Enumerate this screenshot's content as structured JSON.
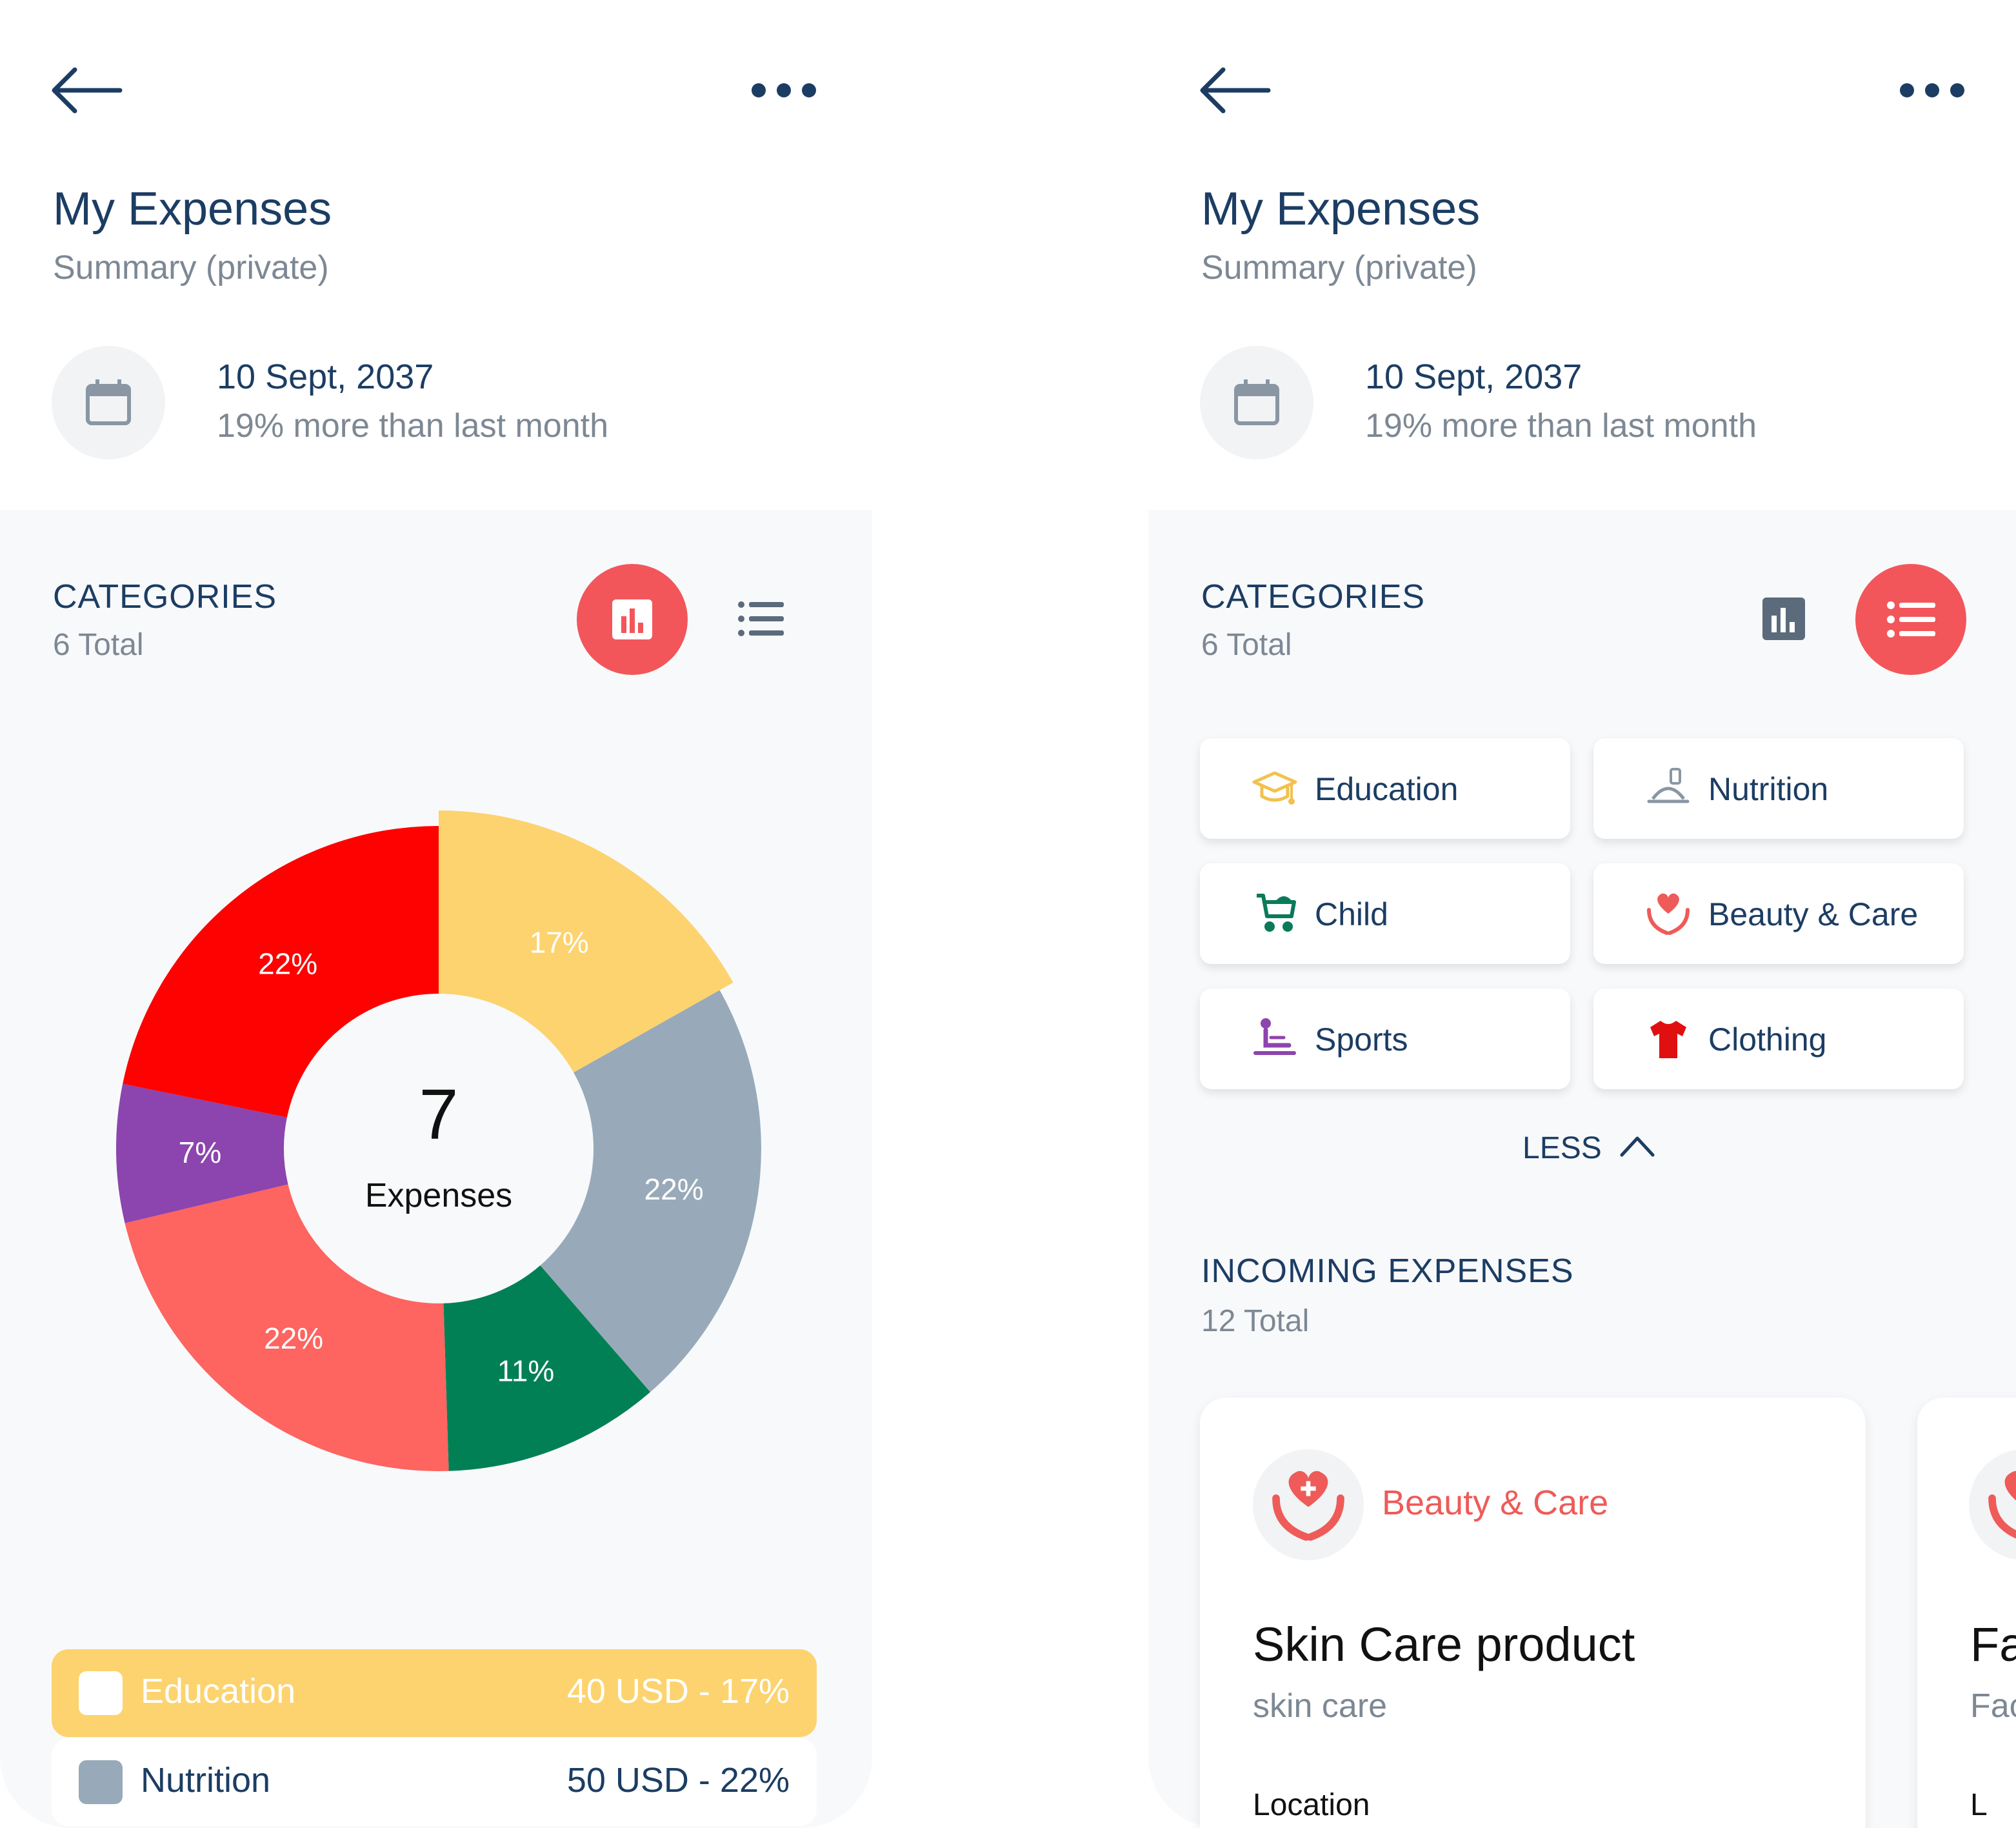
{
  "header": {
    "title": "My Expenses",
    "subtitle": "Summary (private)",
    "date": "10 Sept, 2037",
    "comparison": "19% more than last month"
  },
  "categories": {
    "title": "CATEGORIES",
    "total": "6 Total",
    "items": [
      {
        "label": "Education",
        "icon": "graduation-cap-icon",
        "color": "#f2c14e"
      },
      {
        "label": "Nutrition",
        "icon": "food-tray-icon",
        "color": "#8a96a3"
      },
      {
        "label": "Child",
        "icon": "stroller-icon",
        "color": "#0b7a5a"
      },
      {
        "label": "Beauty & Care",
        "icon": "heart-hands-icon",
        "color": "#ee5b58"
      },
      {
        "label": "Sports",
        "icon": "massage-icon",
        "color": "#8e44ad"
      },
      {
        "label": "Clothing",
        "icon": "tshirt-icon",
        "color": "#e01010"
      }
    ],
    "less_label": "LESS"
  },
  "chart_data": {
    "type": "pie",
    "center_value": "7",
    "center_label": "Expenses",
    "slices": [
      {
        "label": "Education",
        "value": 17,
        "text": "17%",
        "color": "#fcd36e"
      },
      {
        "label": "Nutrition",
        "value": 22,
        "text": "22%",
        "color": "#98aab9"
      },
      {
        "label": "Child",
        "value": 11,
        "text": "11%",
        "color": "#018055"
      },
      {
        "label": "Beauty & Care",
        "value": 22,
        "text": "22%",
        "color": "#fe6460"
      },
      {
        "label": "Sports",
        "value": 7,
        "text": "7%",
        "color": "#8c44ae"
      },
      {
        "label": "Clothing",
        "value": 22,
        "text": "22%",
        "color": "#fd0200"
      }
    ]
  },
  "legend": [
    {
      "label": "Education",
      "value": "40 USD - 17%",
      "bg": "#fcd36e",
      "swatch": "#ffffff",
      "text": "#ffffff"
    },
    {
      "label": "Nutrition",
      "value": "50 USD - 22%",
      "bg": "#ffffff",
      "swatch": "#98aab9",
      "text": "#1c3d63"
    }
  ],
  "incoming": {
    "title": "INCOMING EXPENSES",
    "total": "12 Total",
    "cards": [
      {
        "category": "Beauty & Care",
        "name": "Skin Care product",
        "sub": "skin care",
        "location_label": "Location"
      },
      {
        "category": "",
        "name": "Fa",
        "sub": "Fac",
        "location_label": "L"
      }
    ]
  },
  "colors": {
    "accent": "#f2565a",
    "heading": "#1c3d63",
    "muted": "#7d8894"
  }
}
